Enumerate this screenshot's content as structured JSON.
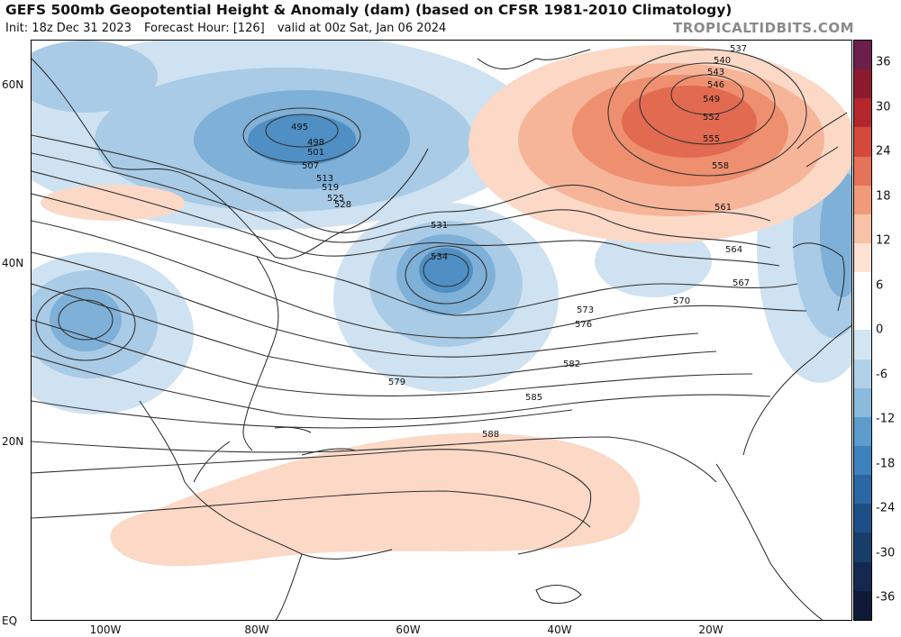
{
  "header": {
    "title": "GEFS 500mb Geopotential Height & Anomaly (dam) (based on CFSR 1981-2010 Climatology)",
    "init": "Init: 18z Dec 31 2023",
    "forecast_hour": "Forecast Hour: [126]",
    "valid": "valid at 00z Sat, Jan 06 2024",
    "credit": "TROPICALTIDBITS.COM"
  },
  "axes": {
    "lat_labels": [
      "60N",
      "40N",
      "20N",
      "EQ"
    ],
    "lon_labels": [
      "100W",
      "80W",
      "60W",
      "40W",
      "20W"
    ]
  },
  "colorbar": {
    "labels": [
      "36",
      "30",
      "24",
      "18",
      "12",
      "6",
      "0",
      "-6",
      "-12",
      "-18",
      "-24",
      "-30",
      "-36"
    ],
    "colors": [
      "#6b1f4a",
      "#8b1a2e",
      "#b3262c",
      "#d44a3a",
      "#e5735a",
      "#f09a7c",
      "#f8c2a6",
      "#fde3d3",
      "#ffffff",
      "#ffffff",
      "#d4e5f2",
      "#b0d0e8",
      "#8bbadd",
      "#5d9ccc",
      "#3d82bd",
      "#2a67a3",
      "#1d4f86",
      "#173d6b",
      "#13294f",
      "#0f1b36"
    ]
  },
  "contour_labels": [
    "537",
    "540",
    "543",
    "546",
    "549",
    "552",
    "555",
    "558",
    "561",
    "564",
    "567",
    "570",
    "573",
    "576",
    "582",
    "585",
    "588",
    "495",
    "498",
    "501",
    "507",
    "513",
    "519",
    "525",
    "528",
    "531",
    "534",
    "579"
  ]
}
